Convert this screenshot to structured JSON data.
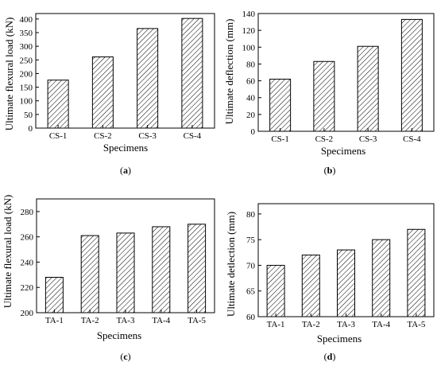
{
  "chart_data": [
    {
      "type": "bar",
      "panel": "a",
      "categories": [
        "CS-1",
        "CS-2",
        "CS-3",
        "CS-4"
      ],
      "values": [
        176,
        261,
        365,
        402
      ],
      "xlabel": "Specimens",
      "ylabel": "Ultimate flexural load (kN)",
      "ylim": [
        0,
        420
      ],
      "yticks": [
        0,
        50,
        100,
        150,
        200,
        250,
        300,
        350,
        400
      ],
      "grid": false,
      "pattern": "hatched"
    },
    {
      "type": "bar",
      "panel": "b",
      "categories": [
        "CS-1",
        "CS-2",
        "CS-3",
        "CS-4"
      ],
      "values": [
        62,
        83,
        101,
        133
      ],
      "xlabel": "Specimens",
      "ylabel": "Ultimate deflection (mm)",
      "ylim": [
        0,
        140
      ],
      "yticks": [
        0,
        20,
        40,
        60,
        80,
        100,
        120,
        140
      ],
      "grid": false,
      "pattern": "hatched"
    },
    {
      "type": "bar",
      "panel": "c",
      "categories": [
        "TA-1",
        "TA-2",
        "TA-3",
        "TA-4",
        "TA-5"
      ],
      "values": [
        228,
        261,
        263,
        268,
        270
      ],
      "xlabel": "Specimens",
      "ylabel": "Ultimate flexural load (kN)",
      "ylim": [
        200,
        290
      ],
      "yticks": [
        200,
        220,
        240,
        260,
        280
      ],
      "grid": false,
      "pattern": "hatched"
    },
    {
      "type": "bar",
      "panel": "d",
      "categories": [
        "TA-1",
        "TA-2",
        "TA-3",
        "TA-4",
        "TA-5"
      ],
      "values": [
        70,
        72,
        73,
        75,
        77
      ],
      "xlabel": "Specimens",
      "ylabel": "Ultimate detlection (mm)",
      "ylim": [
        60,
        82
      ],
      "yticks": [
        60,
        65,
        70,
        75,
        80
      ],
      "grid": false,
      "pattern": "hatched"
    }
  ],
  "panel_labels": {
    "a": {
      "open": "(",
      "letter": "a",
      "close": ")"
    },
    "b": {
      "open": "(",
      "letter": "b",
      "close": ")"
    },
    "c": {
      "open": "(",
      "letter": "c",
      "close": ")"
    },
    "d": {
      "open": "(",
      "letter": "d",
      "close": ")"
    }
  },
  "colors": {
    "bar_fill": "#ffffff",
    "bar_stroke": "#000000",
    "hatch": "#000000",
    "axis": "#000000"
  }
}
